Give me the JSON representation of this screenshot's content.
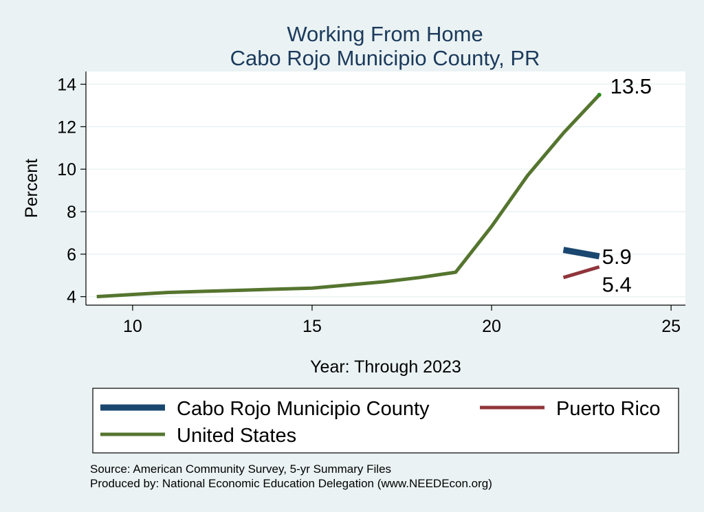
{
  "chart_data": {
    "type": "line",
    "title": [
      "Working From Home",
      "Cabo Rojo Municipio County, PR"
    ],
    "xlabel": "Year: Through 2023",
    "ylabel": "Percent",
    "xlim": [
      8.7,
      25.4
    ],
    "ylim": [
      3.6,
      14.6
    ],
    "xticks": [
      10,
      15,
      20,
      25
    ],
    "yticks": [
      4,
      6,
      8,
      10,
      12,
      14
    ],
    "grid": true,
    "legend_position": "bottom",
    "series": [
      {
        "name": "Cabo Rojo Municipio County",
        "color": "#1a476f",
        "width": 9,
        "x": [
          22,
          23
        ],
        "y": [
          6.2,
          5.9
        ],
        "end_label": "5.9"
      },
      {
        "name": "Puerto Rico",
        "color": "#90353b",
        "width": 5,
        "x": [
          22,
          23
        ],
        "y": [
          4.9,
          5.4
        ],
        "end_label": "5.4"
      },
      {
        "name": "United States",
        "color": "#55752f",
        "width": 5,
        "x": [
          9,
          10,
          11,
          12,
          13,
          14,
          15,
          16,
          17,
          18,
          19,
          20,
          21,
          22,
          23
        ],
        "y": [
          4.0,
          4.1,
          4.2,
          4.25,
          4.3,
          4.35,
          4.4,
          4.55,
          4.7,
          4.9,
          5.15,
          7.3,
          9.7,
          11.7,
          13.5
        ],
        "end_label": "13.5"
      }
    ]
  },
  "legend": {
    "items": [
      {
        "label": "Cabo Rojo Municipio County",
        "color": "#1a476f",
        "width": 9
      },
      {
        "label": "Puerto Rico",
        "color": "#90353b",
        "width": 5
      },
      {
        "label": "United States",
        "color": "#55752f",
        "width": 5
      }
    ]
  },
  "footer": {
    "source": "Source: American Community Survey, 5-yr Summary Files",
    "produced": "Produced by: National Economic Education Delegation (www.NEEDEcon.org)"
  }
}
